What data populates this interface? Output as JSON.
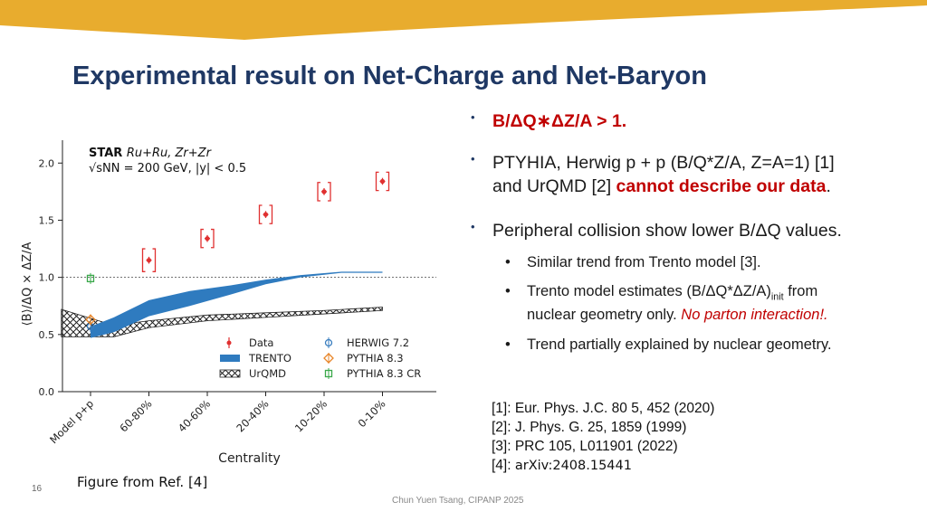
{
  "slide": {
    "title": "Experimental result on Net-Charge and Net-Baryon",
    "number": "16",
    "footer": "Chun Yuen Tsang, CIPANP 2025",
    "caption": "Figure from Ref. [4]",
    "colors": {
      "title": "#1f3864",
      "banner": "#e8ac2e",
      "highlight": "#c00000"
    }
  },
  "bullets": {
    "b1": {
      "text": "B/ΔQ∗ΔZ/A > 1."
    },
    "b2": {
      "line1": "PTYHIA, Herwig p + p (B/Q*Z/A, Z=A=1) [1]",
      "prefix": "and UrQMD [2] ",
      "emph": "cannot describe our data",
      "suffix": "."
    },
    "b3": {
      "text": "Peripheral collision show lower B/ΔQ values."
    },
    "s1": {
      "text": "Similar trend from Trento model [3]."
    },
    "s2": {
      "a": "Trento model estimates (B/ΔQ*ΔZ/A)",
      "sub": "init",
      "b": " from",
      "c": "nuclear geometry only. ",
      "emph": "No parton interaction!."
    },
    "s3": {
      "text": "Trend partially explained by nuclear geometry."
    }
  },
  "references": [
    {
      "text": "[1]: Eur. Phys. J.C. 80 5, 452 (2020)"
    },
    {
      "text": "[2]: J. Phys. G. 25, 1859 (1999)"
    },
    {
      "text": "[3]: PRC 105, L011901 (2022)"
    },
    {
      "label": "[4]: ",
      "text": "arXiv:2408.15441"
    }
  ],
  "chart_data": {
    "type": "scatter",
    "xlabel": "Centrality",
    "ylabel": "⟨B⟩/ΔQ × ΔZ/A",
    "ylim": [
      0,
      2.2
    ],
    "yticks": [
      0.0,
      0.5,
      1.0,
      1.5,
      2.0
    ],
    "categories": [
      "Model p+p",
      "60-80%",
      "40-60%",
      "20-40%",
      "10-20%",
      "0-10%"
    ],
    "reference_line": 1.0,
    "grid": false,
    "legend_position": "bottom-right",
    "annotation": {
      "experiment": "STAR",
      "system": "Ru+Ru, Zr+Zr",
      "energy": "√sNN = 200 GeV, |y| < 0.5"
    },
    "star_data": {
      "name": "Data",
      "color": "#e03030",
      "points": [
        {
          "cat": 1,
          "y": 1.15,
          "stat": 0.03,
          "sys": 0.1
        },
        {
          "cat": 2,
          "y": 1.34,
          "stat": 0.03,
          "sys": 0.08
        },
        {
          "cat": 3,
          "y": 1.55,
          "stat": 0.03,
          "sys": 0.08
        },
        {
          "cat": 4,
          "y": 1.75,
          "stat": 0.03,
          "sys": 0.08
        },
        {
          "cat": 5,
          "y": 1.84,
          "stat": 0.03,
          "sys": 0.08
        }
      ]
    },
    "pp_models": [
      {
        "name": "HERWIG 7.2",
        "y": 0.57,
        "color": "#3a7ebf",
        "marker": "circle"
      },
      {
        "name": "PYTHIA 8.3",
        "y": 0.63,
        "color": "#e8862a",
        "marker": "diamond"
      },
      {
        "name": "PYTHIA 8.3 CR",
        "y": 0.99,
        "color": "#3aa84a",
        "marker": "square"
      }
    ],
    "trento": {
      "name": "TRENTO",
      "color": "#2f7bbf",
      "upper": [
        [
          0.0,
          0.57
        ],
        [
          0.4,
          0.65
        ],
        [
          1.0,
          0.8
        ],
        [
          1.7,
          0.88
        ],
        [
          2.4,
          0.93
        ],
        [
          3.0,
          0.98
        ],
        [
          3.6,
          1.02
        ],
        [
          4.3,
          1.05
        ],
        [
          5.0,
          1.05
        ]
      ],
      "lower": [
        [
          0.0,
          0.47
        ],
        [
          0.4,
          0.52
        ],
        [
          1.0,
          0.66
        ],
        [
          1.7,
          0.75
        ],
        [
          2.4,
          0.85
        ],
        [
          3.0,
          0.94
        ],
        [
          3.6,
          1.0
        ],
        [
          4.3,
          1.04
        ],
        [
          5.0,
          1.04
        ]
      ]
    },
    "urqmd": {
      "name": "UrQMD",
      "upper": [
        [
          -0.5,
          0.72
        ],
        [
          0.4,
          0.58
        ],
        [
          1.0,
          0.62
        ],
        [
          2.0,
          0.67
        ],
        [
          3.0,
          0.69
        ],
        [
          4.0,
          0.71
        ],
        [
          5.0,
          0.74
        ]
      ],
      "lower": [
        [
          -0.5,
          0.48
        ],
        [
          0.4,
          0.48
        ],
        [
          1.0,
          0.56
        ],
        [
          2.0,
          0.62
        ],
        [
          3.0,
          0.65
        ],
        [
          4.0,
          0.68
        ],
        [
          5.0,
          0.71
        ]
      ]
    }
  }
}
